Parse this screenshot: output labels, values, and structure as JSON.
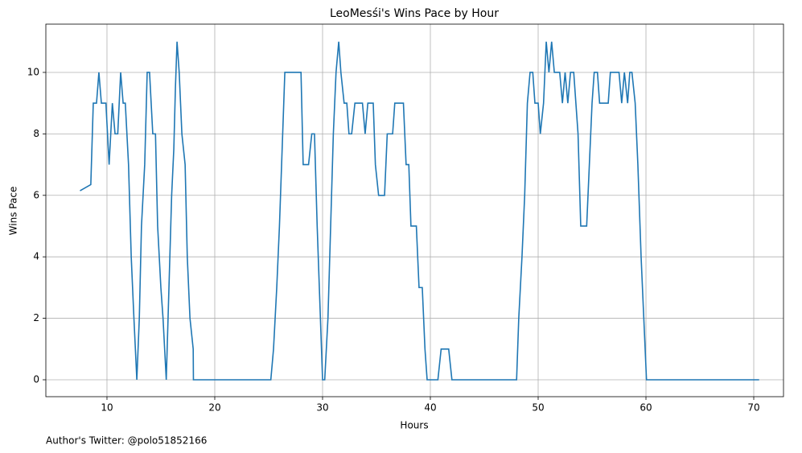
{
  "chart_data": {
    "type": "line",
    "title": "LeoMesśi's Wins Pace by Hour",
    "xlabel": "Hours",
    "ylabel": "Wins Pace",
    "annotation": "Author's Twitter: @polo51852166",
    "x": [
      7.5,
      8.5,
      8.73,
      9.03,
      9.25,
      9.48,
      9.9,
      10.2,
      10.5,
      10.75,
      11,
      11.27,
      11.5,
      11.7,
      12,
      12.25,
      12.5,
      12.77,
      13,
      13.2,
      13.5,
      13.73,
      13.95,
      14.25,
      14.5,
      14.7,
      15,
      15.2,
      15.5,
      15.75,
      16,
      16.2,
      16.35,
      16.5,
      16.7,
      16.95,
      17.25,
      17.45,
      17.7,
      18,
      18.02,
      25.2,
      25.45,
      25.75,
      26,
      26.3,
      26.5,
      28,
      28.2,
      28.7,
      29,
      29.25,
      29.5,
      29.7,
      30,
      30.2,
      30.5,
      30.75,
      31,
      31.25,
      31.5,
      31.7,
      32,
      32.25,
      32.45,
      32.7,
      33,
      33.7,
      33.95,
      34.2,
      34.7,
      34.9,
      35.2,
      35.75,
      36,
      36.5,
      36.7,
      37.5,
      37.75,
      38,
      38.2,
      38.7,
      38.95,
      39.25,
      39.5,
      39.7,
      40.7,
      41,
      41.7,
      42,
      48,
      48.2,
      48.5,
      48.75,
      49,
      49.25,
      49.5,
      49.7,
      50,
      50.2,
      50.5,
      50.75,
      51,
      51.25,
      51.5,
      52,
      52.25,
      52.5,
      52.75,
      53,
      53.3,
      53.5,
      53.7,
      53.95,
      54.5,
      54.75,
      55,
      55.2,
      55.5,
      55.7,
      56.5,
      56.7,
      57.5,
      57.75,
      58,
      58.3,
      58.5,
      58.7,
      59,
      59.25,
      59.55,
      59.8,
      60.05,
      70.5
    ],
    "series": [
      {
        "name": "Wins Pace",
        "color": "#1f77b4",
        "values": [
          6.15,
          6.35,
          9,
          9,
          10,
          9,
          9,
          7,
          9,
          8,
          8,
          10,
          9,
          9,
          7,
          4,
          2,
          0,
          2,
          5,
          7,
          10,
          10,
          8,
          8,
          5,
          3,
          2,
          0,
          3,
          6,
          7.5,
          9.5,
          11,
          10,
          8,
          7,
          4,
          2,
          1,
          0,
          0,
          1,
          3,
          5,
          8,
          10,
          10,
          7,
          7,
          8,
          8,
          5,
          3,
          0,
          0,
          2,
          5,
          8,
          10,
          11,
          10,
          9,
          9,
          8,
          8,
          9,
          9,
          8,
          9,
          9,
          7,
          6,
          6,
          8,
          8,
          9,
          9,
          7,
          7,
          5,
          5,
          3,
          3,
          1,
          0,
          0,
          1,
          1,
          0,
          0,
          2,
          4,
          6,
          9,
          10,
          10,
          9,
          9,
          8,
          9,
          11,
          10,
          11,
          10,
          10,
          9,
          10,
          9,
          10,
          10,
          9,
          8,
          5,
          5,
          7,
          9,
          10,
          10,
          9,
          9,
          10,
          10,
          9,
          10,
          9,
          10,
          10,
          9,
          7,
          4,
          2,
          0,
          0
        ]
      }
    ],
    "xlim": [
      4.33,
      72.76
    ],
    "ylim": [
      -0.55,
      11.57
    ],
    "xticks": [
      10,
      20,
      30,
      40,
      50,
      60,
      70
    ],
    "yticks": [
      0,
      2,
      4,
      6,
      8,
      10
    ],
    "grid": true
  }
}
